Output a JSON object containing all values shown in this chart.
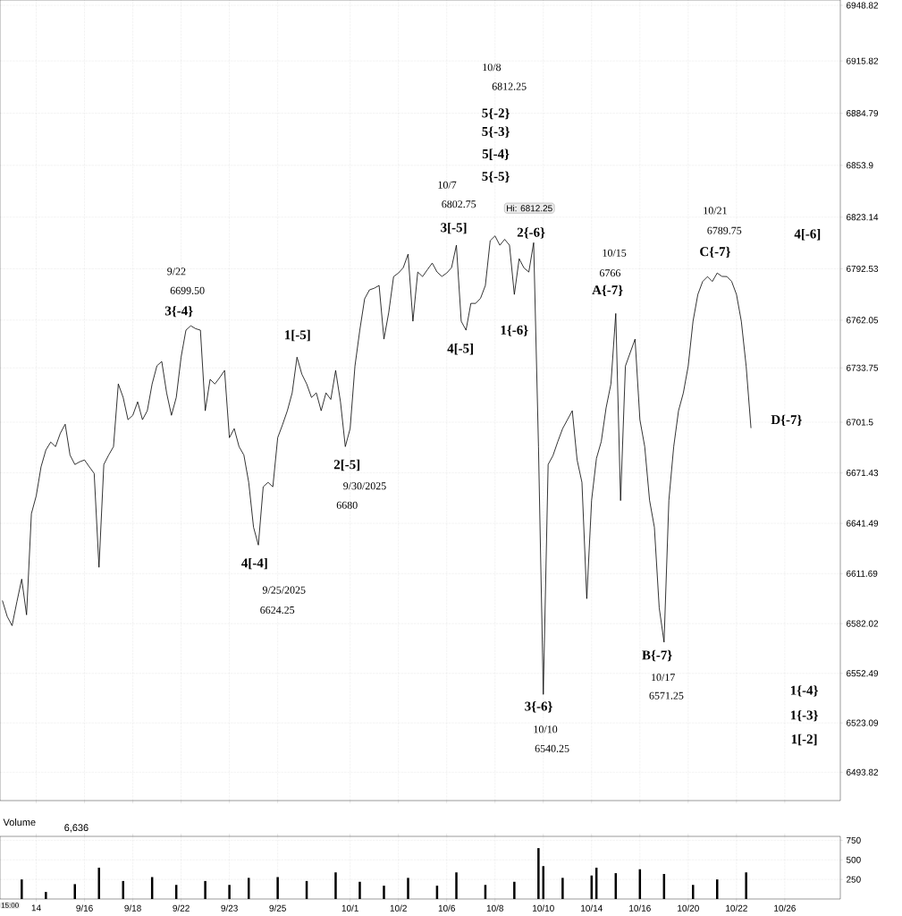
{
  "chart_data": [
    {
      "type": "line",
      "color": "#000000",
      "grid": true,
      "tick_labels": "y",
      "ylim": [
        6477,
        6952
      ],
      "yticks": [
        6493.82,
        6523.09,
        6552.49,
        6582.02,
        6611.69,
        6641.49,
        6671.43,
        6701.5,
        6733.75,
        6762.05,
        6792.53,
        6823.14,
        6853.9,
        6884.79,
        6915.82,
        6948.82
      ],
      "categories": [
        null,
        null,
        null,
        null,
        null,
        null,
        null,
        null,
        null,
        null,
        null,
        null,
        null,
        null,
        null,
        null,
        null,
        null,
        null,
        null,
        null,
        null,
        null,
        null,
        null,
        null,
        null,
        null,
        null,
        null,
        null,
        null,
        null,
        null,
        null,
        null,
        null,
        null,
        null,
        null,
        null,
        null,
        null,
        null,
        null,
        null,
        null,
        null,
        null,
        null,
        null,
        null,
        null,
        null,
        null,
        null,
        null,
        null,
        null,
        null,
        null,
        null,
        null,
        null,
        null,
        null,
        null,
        null,
        null,
        null,
        null,
        null,
        null,
        null,
        null,
        null,
        null,
        null,
        null,
        null,
        null,
        null,
        null,
        null,
        null,
        null,
        null,
        null,
        null,
        null,
        null,
        null,
        null,
        null,
        null,
        null,
        null,
        null,
        null,
        null,
        null,
        null,
        null,
        null,
        null,
        null,
        null,
        null,
        null,
        null,
        null,
        null,
        null,
        null,
        null,
        null,
        null,
        null,
        null,
        null,
        null,
        null,
        null,
        null,
        null,
        null,
        null,
        null,
        null,
        null,
        null,
        null,
        null,
        null,
        null,
        null,
        null,
        null,
        null,
        null,
        null,
        null,
        null,
        null,
        null,
        null,
        null,
        null,
        null,
        null,
        null,
        null,
        null,
        null,
        null,
        null,
        null,
        null,
        null,
        null,
        null,
        null,
        null,
        null,
        null,
        null,
        null,
        null,
        null,
        null,
        null,
        null,
        null,
        null
      ],
      "values": [
        6595.7,
        6586.2,
        6580.8,
        6595,
        6608.4,
        6587.2,
        6647.2,
        6657.8,
        6675,
        6685,
        6689.7,
        6687,
        6695,
        6700.3,
        6682,
        6676.4,
        6678,
        6679.1,
        6675,
        6671.1,
        6615.4,
        6676.4,
        6682,
        6687,
        6724.2,
        6716.2,
        6703,
        6705.6,
        6713.6,
        6703,
        6708.3,
        6724.2,
        6735,
        6737.5,
        6718.9,
        6705.6,
        6716.2,
        6740.1,
        6756.1,
        6758.7,
        6757,
        6756.1,
        6708.3,
        6726.9,
        6724.2,
        6728,
        6732.2,
        6692.3,
        6697.7,
        6687,
        6682,
        6665.8,
        6639.2,
        6628.6,
        6663.2,
        6665.8,
        6663.2,
        6692.3,
        6700,
        6708.3,
        6718.9,
        6740.1,
        6730,
        6724.2,
        6716.2,
        6718.9,
        6708.3,
        6718.9,
        6715,
        6732.2,
        6713.6,
        6687,
        6697.7,
        6734.8,
        6756.1,
        6774.7,
        6780,
        6781,
        6782.6,
        6750.8,
        6766.7,
        6787.9,
        6790,
        6793.2,
        6801.2,
        6761.4,
        6790.6,
        6787.9,
        6792,
        6795.9,
        6790.6,
        6788,
        6790,
        6793.2,
        6806.5,
        6761.4,
        6756.1,
        6772,
        6772,
        6775,
        6782.6,
        6809.2,
        6812,
        6806.5,
        6810,
        6806.5,
        6777.3,
        6798.5,
        6793,
        6790.6,
        6808,
        6687,
        6540,
        6676.4,
        6681.7,
        6690,
        6697.7,
        6703,
        6708.3,
        6679.1,
        6665.8,
        6596.8,
        6655.2,
        6680,
        6690,
        6710,
        6724.2,
        6766,
        6655,
        6734.8,
        6742.8,
        6750.8,
        6703,
        6687,
        6655.2,
        6639.2,
        6591.4,
        6571,
        6655.2,
        6687,
        6708.3,
        6718.9,
        6734.8,
        6761.4,
        6777.3,
        6785,
        6787.9,
        6785,
        6790,
        6788,
        6787.9,
        6785,
        6777.3,
        6761.4,
        6734.8,
        6698,
        null,
        null,
        null,
        null,
        null,
        null,
        null,
        null,
        null,
        null,
        null,
        null,
        null,
        null,
        null,
        null,
        null,
        null
      ],
      "annotations": [
        "9/22",
        "6699.50",
        "3{-4}",
        "1[-5]",
        "4[-4]",
        "9/25/2025",
        "6624.25",
        "2[-5]",
        "9/30/2025",
        "6680",
        "10/7",
        "6802.75",
        "3[-5]",
        "4[-5]",
        "10/8",
        "6812.25",
        "5{-2}",
        "5{-3}",
        "5[-4}",
        "5{-5}",
        "Hi: 6812.25",
        "2{-6}",
        "1{-6}",
        "3{-6}",
        "10/10",
        "6540.25",
        "10/15",
        "6766",
        "A{-7}",
        "B{-7}",
        "10/17",
        "6571.25",
        "10/21",
        "6789.75",
        "C{-7}",
        "4[-6]",
        "D{-7}",
        "1{-4}",
        "1{-3}",
        "1[-2]"
      ]
    },
    {
      "type": "bar",
      "title": "Volume",
      "color": "#000000",
      "grid": true,
      "ylim": [
        0,
        800
      ],
      "yticks": [
        250,
        500,
        750
      ],
      "categories": [
        null,
        null,
        null,
        null,
        null,
        null,
        null,
        "14",
        null,
        null,
        null,
        null,
        null,
        null,
        null,
        null,
        null,
        "9/16",
        null,
        null,
        null,
        null,
        null,
        null,
        null,
        null,
        null,
        "9/18",
        null,
        null,
        null,
        null,
        null,
        null,
        null,
        null,
        null,
        "9/22",
        null,
        null,
        null,
        null,
        null,
        null,
        null,
        null,
        null,
        "9/23",
        null,
        null,
        null,
        null,
        null,
        null,
        null,
        null,
        null,
        "9/25",
        null,
        null,
        null,
        null,
        null,
        null,
        null,
        null,
        null,
        null,
        null,
        null,
        null,
        null,
        "10/1",
        null,
        null,
        null,
        null,
        null,
        null,
        null,
        null,
        null,
        "10/2",
        null,
        null,
        null,
        null,
        null,
        null,
        null,
        null,
        null,
        "10/6",
        null,
        null,
        null,
        null,
        null,
        null,
        null,
        null,
        null,
        "10/8",
        null,
        null,
        null,
        null,
        null,
        null,
        null,
        null,
        null,
        "10/10",
        null,
        null,
        null,
        null,
        null,
        null,
        null,
        null,
        null,
        "10/14",
        null,
        null,
        null,
        null,
        null,
        null,
        null,
        null,
        null,
        "10/16",
        null,
        null,
        null,
        null,
        null,
        null,
        null,
        null,
        null,
        "10/20",
        null,
        null,
        null,
        null,
        null,
        null,
        null,
        null,
        null,
        "10/22",
        null,
        null,
        null,
        null,
        null,
        null,
        null,
        null,
        null,
        "10/26",
        null,
        null,
        null,
        null,
        null,
        null,
        null,
        null,
        null,
        null,
        null
      ],
      "values": [
        null,
        null,
        null,
        null,
        250,
        null,
        null,
        null,
        null,
        90,
        null,
        null,
        null,
        null,
        null,
        190,
        null,
        null,
        null,
        null,
        400,
        null,
        null,
        null,
        null,
        230,
        null,
        null,
        null,
        null,
        null,
        280,
        null,
        null,
        null,
        null,
        180,
        null,
        null,
        null,
        null,
        null,
        230,
        null,
        null,
        null,
        null,
        180,
        null,
        null,
        null,
        270,
        null,
        null,
        null,
        null,
        null,
        280,
        null,
        null,
        null,
        null,
        null,
        230,
        null,
        null,
        null,
        null,
        null,
        340,
        null,
        null,
        null,
        null,
        220,
        null,
        null,
        null,
        null,
        170,
        null,
        null,
        null,
        null,
        270,
        null,
        null,
        null,
        null,
        null,
        170,
        null,
        null,
        null,
        340,
        null,
        null,
        null,
        null,
        null,
        180,
        null,
        null,
        null,
        null,
        null,
        220,
        null,
        null,
        null,
        null,
        650,
        420,
        null,
        null,
        null,
        270,
        null,
        null,
        null,
        null,
        null,
        300,
        400,
        null,
        null,
        null,
        330,
        null,
        null,
        null,
        null,
        380,
        null,
        null,
        null,
        null,
        320,
        null,
        null,
        null,
        null,
        null,
        180,
        null,
        null,
        null,
        null,
        250,
        null,
        null,
        null,
        null,
        null,
        340,
        null,
        null,
        null,
        null,
        null,
        null,
        null,
        null,
        null,
        null,
        null,
        null,
        null,
        null,
        null,
        null,
        null,
        null,
        null
      ],
      "annotations": [
        "6,636",
        "15:00"
      ]
    }
  ]
}
